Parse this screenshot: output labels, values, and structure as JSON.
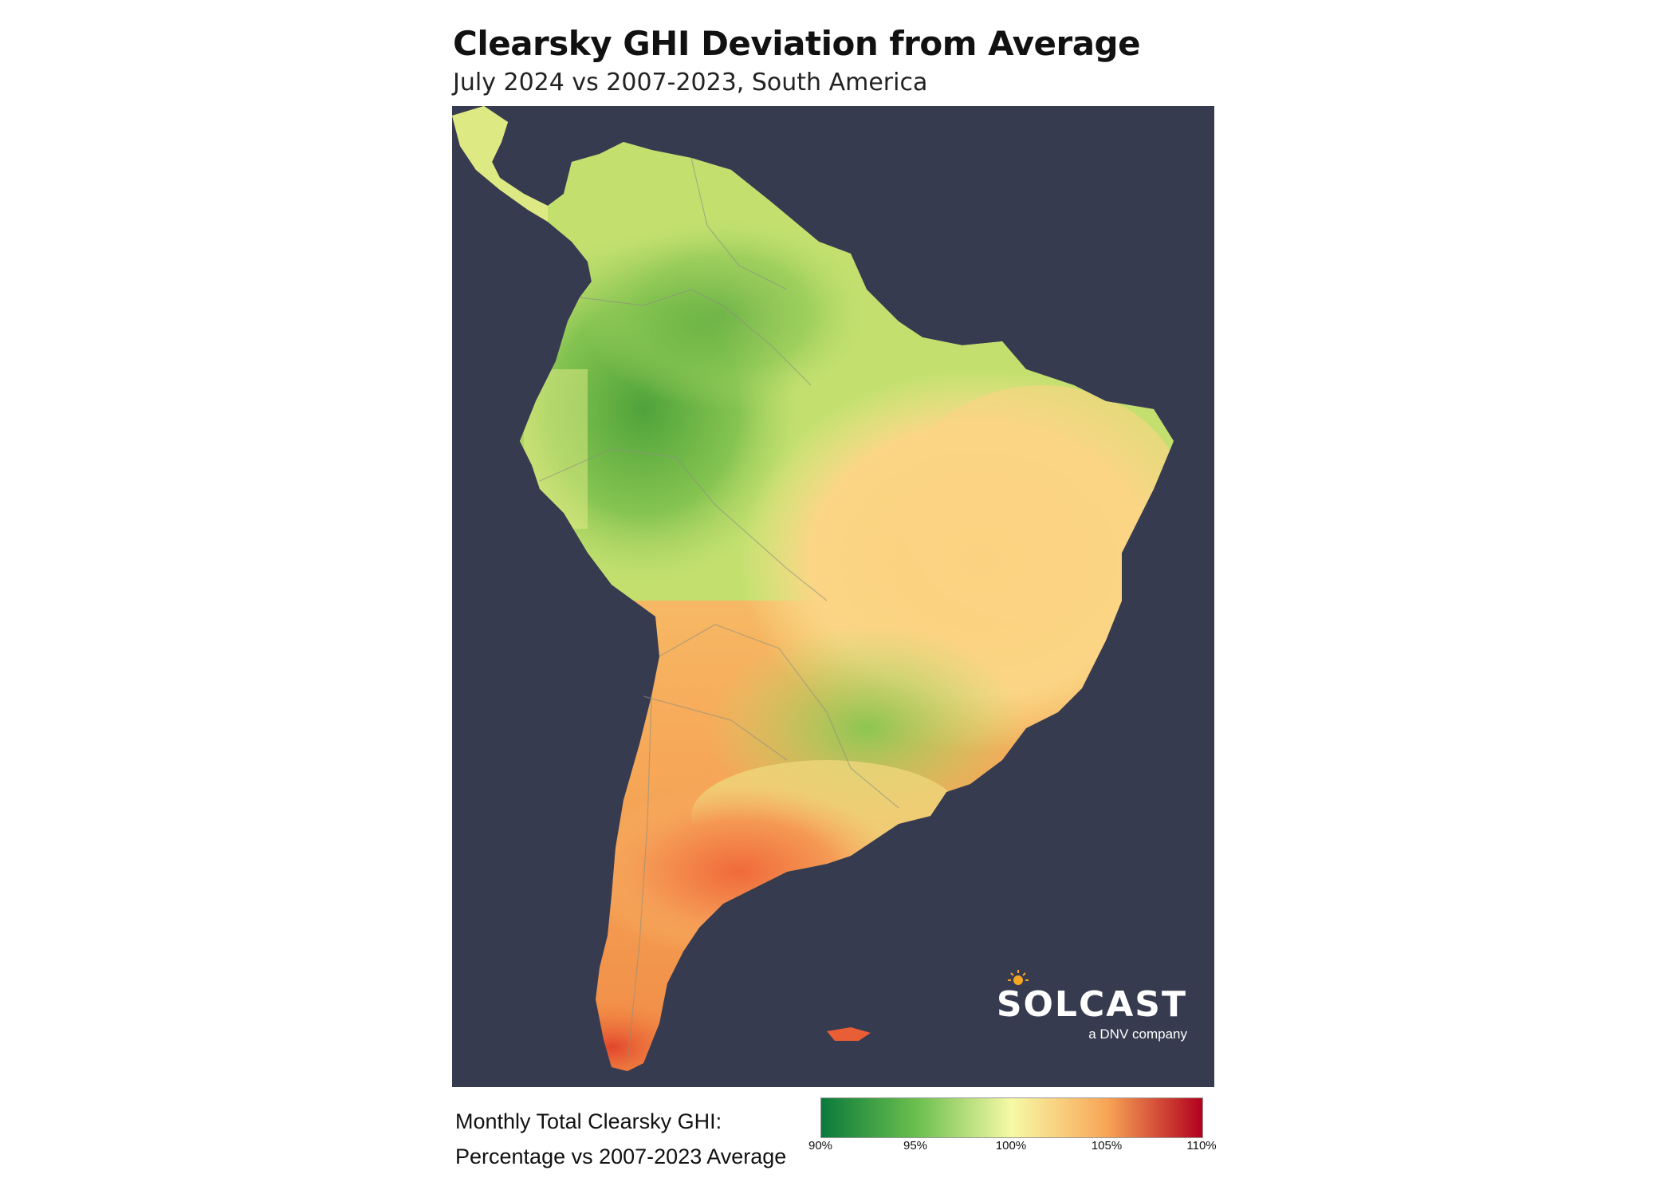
{
  "header": {
    "title": "Clearsky GHI Deviation from Average",
    "subtitle": "July 2024 vs 2007-2023, South America"
  },
  "map": {
    "region": "South America",
    "background_color": "#373b4f",
    "border_color": "#8c8f80"
  },
  "logo": {
    "word": "SOLCAST",
    "tagline": "a DNV company"
  },
  "legend": {
    "title_line1": "Monthly Total Clearsky GHI:",
    "title_line2": "Percentage vs 2007-2023 Average",
    "ticks": [
      "90%",
      "95%",
      "100%",
      "105%",
      "110%"
    ],
    "tick_values": [
      90,
      95,
      100,
      105,
      110
    ],
    "colors": [
      "#0b7a3b",
      "#6bbf4e",
      "#f7f9a6",
      "#f8a556",
      "#b3001e"
    ]
  }
}
